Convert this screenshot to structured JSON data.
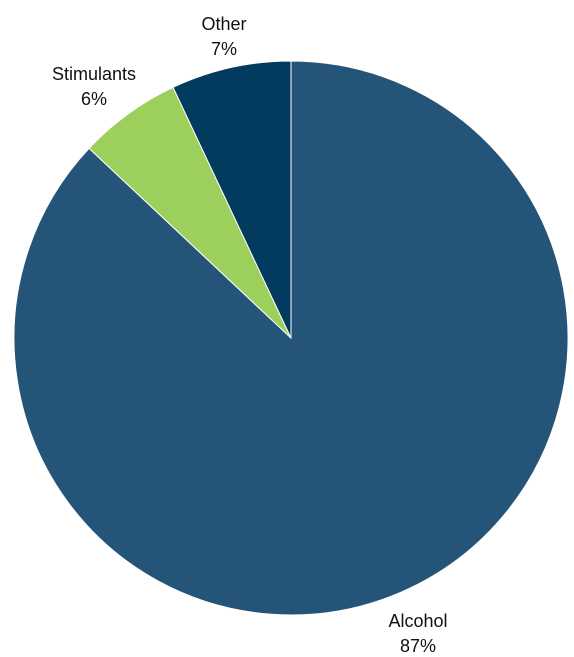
{
  "chart_data": {
    "type": "pie",
    "slices": [
      {
        "label": "Alcohol",
        "value": 87,
        "value_label": "87%",
        "color": "#245478"
      },
      {
        "label": "Stimulants",
        "value": 6,
        "value_label": "6%",
        "color": "#9ccf5c"
      },
      {
        "label": "Other",
        "value": 7,
        "value_label": "7%",
        "color": "#033b5f"
      }
    ],
    "start": "12 o'clock",
    "direction": "clockwise",
    "legend": "none"
  }
}
